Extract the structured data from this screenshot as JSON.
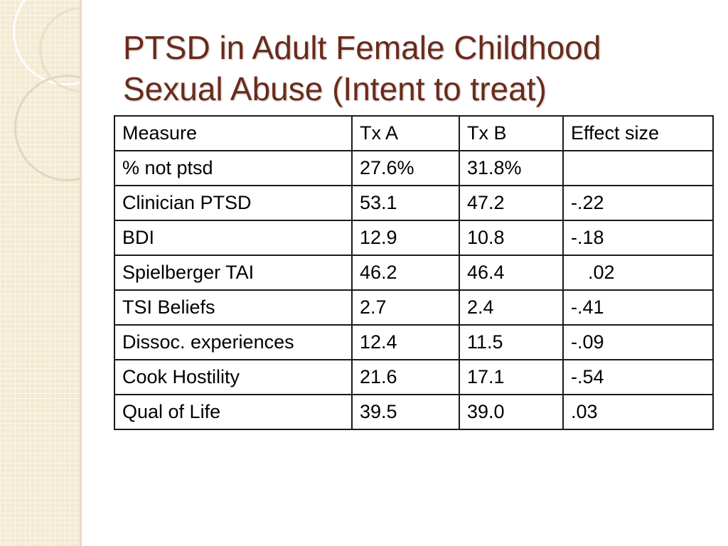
{
  "slide": {
    "title_line1": "PTSD in Adult Female Childhood",
    "title_line2": "Sexual Abuse  (Intent to treat)",
    "title_color": "#6b2a1a",
    "sidebar_color": "#f3ead2"
  },
  "table": {
    "header": [
      "Measure",
      "Tx A",
      "Tx B",
      "Effect size"
    ],
    "rows": [
      [
        "% not ptsd",
        "27.6%",
        "31.8%",
        ""
      ],
      [
        "Clinician PTSD",
        "53.1",
        "47.2",
        "-.22"
      ],
      [
        "BDI",
        "12.9",
        "10.8",
        "-.18"
      ],
      [
        "Spielberger TAI",
        "46.2",
        "46.4",
        ".02"
      ],
      [
        "TSI Beliefs",
        "2.7",
        "2.4",
        "-.41"
      ],
      [
        "Dissoc. experiences",
        "12.4",
        "11.5",
        "-.09"
      ],
      [
        "Cook Hostility",
        "21.6",
        "17.1",
        "-.54"
      ],
      [
        "Qual of Life",
        "39.5",
        "39.0",
        ".03"
      ]
    ]
  }
}
